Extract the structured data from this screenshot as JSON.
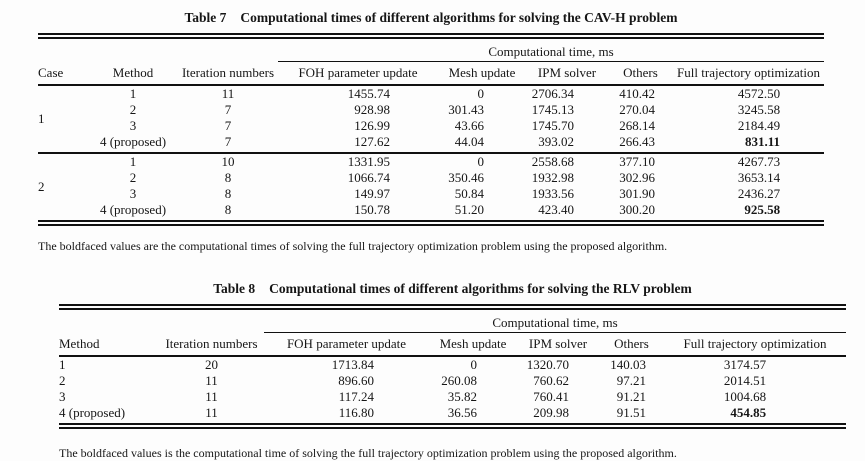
{
  "colors": {
    "background": "#fdfdfd",
    "text": "#161616",
    "rule": "#111111"
  },
  "table7": {
    "label": "Table 7",
    "title": "Computational times of different algorithms for solving the CAV-H problem",
    "span_header": "Computational time, ms",
    "columns": [
      "Case",
      "Method",
      "Iteration numbers",
      "FOH parameter update",
      "Mesh update",
      "IPM solver",
      "Others",
      "Full trajectory optimization"
    ],
    "groups": [
      {
        "case": "1",
        "rows": [
          {
            "method": "1",
            "iterations": "11",
            "foh": "1455.74",
            "mesh": "0",
            "ipm": "2706.34",
            "others": "410.42",
            "full": "4572.50",
            "bold": false
          },
          {
            "method": "2",
            "iterations": "7",
            "foh": "928.98",
            "mesh": "301.43",
            "ipm": "1745.13",
            "others": "270.04",
            "full": "3245.58",
            "bold": false
          },
          {
            "method": "3",
            "iterations": "7",
            "foh": "126.99",
            "mesh": "43.66",
            "ipm": "1745.70",
            "others": "268.14",
            "full": "2184.49",
            "bold": false
          },
          {
            "method": "4 (proposed)",
            "iterations": "7",
            "foh": "127.62",
            "mesh": "44.04",
            "ipm": "393.02",
            "others": "266.43",
            "full": "831.11",
            "bold": true
          }
        ]
      },
      {
        "case": "2",
        "rows": [
          {
            "method": "1",
            "iterations": "10",
            "foh": "1331.95",
            "mesh": "0",
            "ipm": "2558.68",
            "others": "377.10",
            "full": "4267.73",
            "bold": false
          },
          {
            "method": "2",
            "iterations": "8",
            "foh": "1066.74",
            "mesh": "350.46",
            "ipm": "1932.98",
            "others": "302.96",
            "full": "3653.14",
            "bold": false
          },
          {
            "method": "3",
            "iterations": "8",
            "foh": "149.97",
            "mesh": "50.84",
            "ipm": "1933.56",
            "others": "301.90",
            "full": "2436.27",
            "bold": false
          },
          {
            "method": "4 (proposed)",
            "iterations": "8",
            "foh": "150.78",
            "mesh": "51.20",
            "ipm": "423.40",
            "others": "300.20",
            "full": "925.58",
            "bold": true
          }
        ]
      }
    ],
    "footnote": "The boldfaced values are the computational times of solving the full trajectory optimization problem using the proposed algorithm."
  },
  "table8": {
    "label": "Table 8",
    "title": "Computational times of different algorithms for solving the RLV problem",
    "span_header": "Computational time, ms",
    "columns": [
      "Method",
      "Iteration numbers",
      "FOH parameter update",
      "Mesh update",
      "IPM solver",
      "Others",
      "Full trajectory optimization"
    ],
    "rows": [
      {
        "method": "1",
        "iterations": "20",
        "foh": "1713.84",
        "mesh": "0",
        "ipm": "1320.70",
        "others": "140.03",
        "full": "3174.57",
        "bold": false
      },
      {
        "method": "2",
        "iterations": "11",
        "foh": "896.60",
        "mesh": "260.08",
        "ipm": "760.62",
        "others": "97.21",
        "full": "2014.51",
        "bold": false
      },
      {
        "method": "3",
        "iterations": "11",
        "foh": "117.24",
        "mesh": "35.82",
        "ipm": "760.41",
        "others": "91.21",
        "full": "1004.68",
        "bold": false
      },
      {
        "method": "4 (proposed)",
        "iterations": "11",
        "foh": "116.80",
        "mesh": "36.56",
        "ipm": "209.98",
        "others": "91.51",
        "full": "454.85",
        "bold": true
      }
    ],
    "footnote": "The boldfaced values is the computational time of solving the full trajectory optimization problem using the proposed algorithm."
  }
}
